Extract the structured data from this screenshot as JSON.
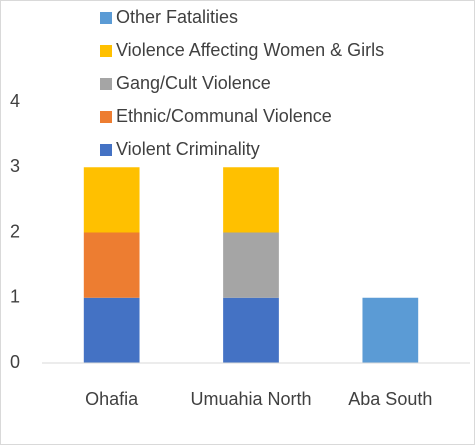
{
  "chart_data": {
    "type": "stacked_bar",
    "categories": [
      "Ohafia",
      "Umuahia North",
      "Aba South"
    ],
    "series": [
      {
        "name": "Violent Criminality",
        "color": "#4472c4",
        "values": [
          1,
          1,
          0
        ]
      },
      {
        "name": "Ethnic/Communal Violence",
        "color": "#ed7d31",
        "values": [
          1,
          0,
          0
        ]
      },
      {
        "name": "Gang/Cult Violence",
        "color": "#a5a5a5",
        "values": [
          0,
          1,
          0
        ]
      },
      {
        "name": "Violence Affecting Women & Girls",
        "color": "#ffc000",
        "values": [
          1,
          1,
          0
        ]
      },
      {
        "name": "Other Fatalities",
        "color": "#5b9bd5",
        "values": [
          0,
          0,
          1
        ]
      }
    ],
    "ylim": [
      0,
      4
    ],
    "yticks": [
      0,
      1,
      2,
      3,
      4
    ],
    "grid": false,
    "legend": "top"
  }
}
